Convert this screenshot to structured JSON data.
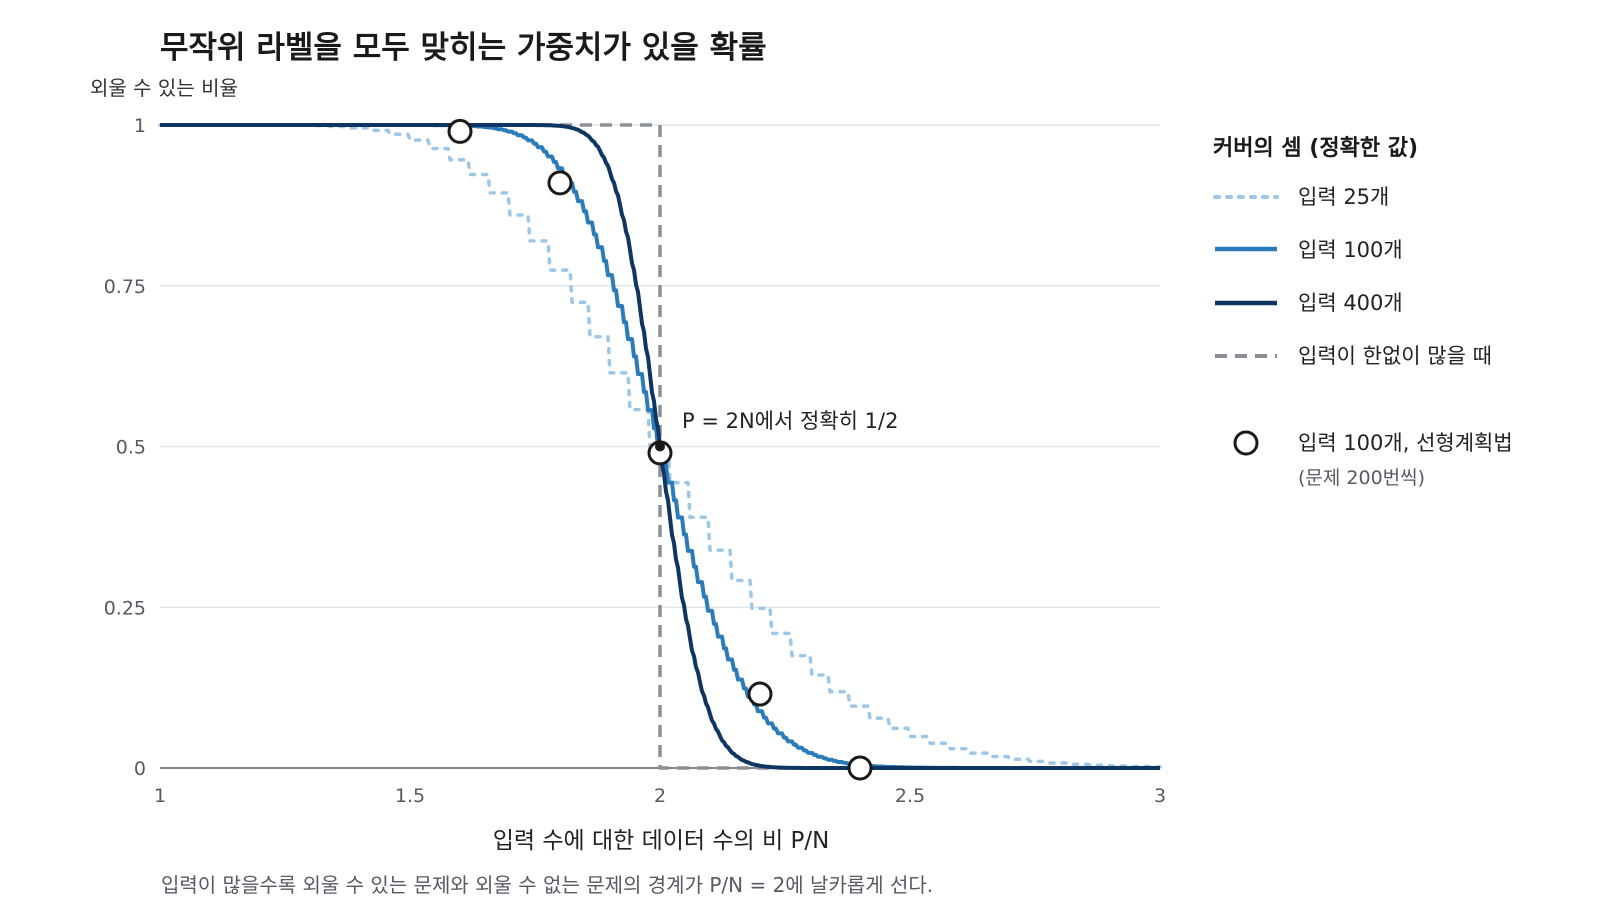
{
  "chart_data": {
    "type": "line",
    "title": "무작위 라벨을 모두 맞히는 가중치가 있을 확률",
    "ylabel": "외울 수 있는 비율",
    "xlabel": "입력 수에 대한 데이터 수의 비 P/N",
    "caption": "입력이 많을수록 외울 수 있는 문제와 외울 수 없는 문제의 경계가 P/N = 2에 날카롭게 선다.",
    "xlim": [
      1,
      3
    ],
    "ylim": [
      0,
      1
    ],
    "x_ticks": [
      1,
      1.5,
      2,
      2.5,
      3
    ],
    "x_tick_labels": [
      "1",
      "1.5",
      "2",
      "2.5",
      "3"
    ],
    "y_ticks": [
      0,
      0.25,
      0.5,
      0.75,
      1
    ],
    "y_tick_labels": [
      "0",
      "0.25",
      "0.5",
      "0.75",
      "1"
    ],
    "grid": "horizontal",
    "legend_placement": "right",
    "annotation": "P = 2N에서 정확히 1/2",
    "annotation_at": [
      2,
      0.5
    ],
    "legend": {
      "title": "커버의 셈 (정확한 값)",
      "marker_label": "입력 100개, 선형계획법",
      "marker_sublabel": "(문제 200번씩)"
    },
    "series": [
      {
        "name": "입력 25개",
        "N": 25,
        "style": "dotted",
        "color": "#9cc7e6"
      },
      {
        "name": "입력 100개",
        "N": 100,
        "style": "solid",
        "color": "#2b7bba"
      },
      {
        "name": "입력 400개",
        "N": 400,
        "style": "solid",
        "color": "#0f3563"
      },
      {
        "name": "입력이 한없이 많을 때",
        "style": "dashed",
        "color": "#8a8f98",
        "x": [
          1,
          2,
          2,
          3
        ],
        "y": [
          1,
          1,
          0,
          0
        ]
      }
    ],
    "markers": {
      "x": [
        1.6,
        1.8,
        2.0,
        2.2,
        2.4
      ],
      "y": [
        0.99,
        0.91,
        0.49,
        0.115,
        0.0
      ]
    }
  }
}
